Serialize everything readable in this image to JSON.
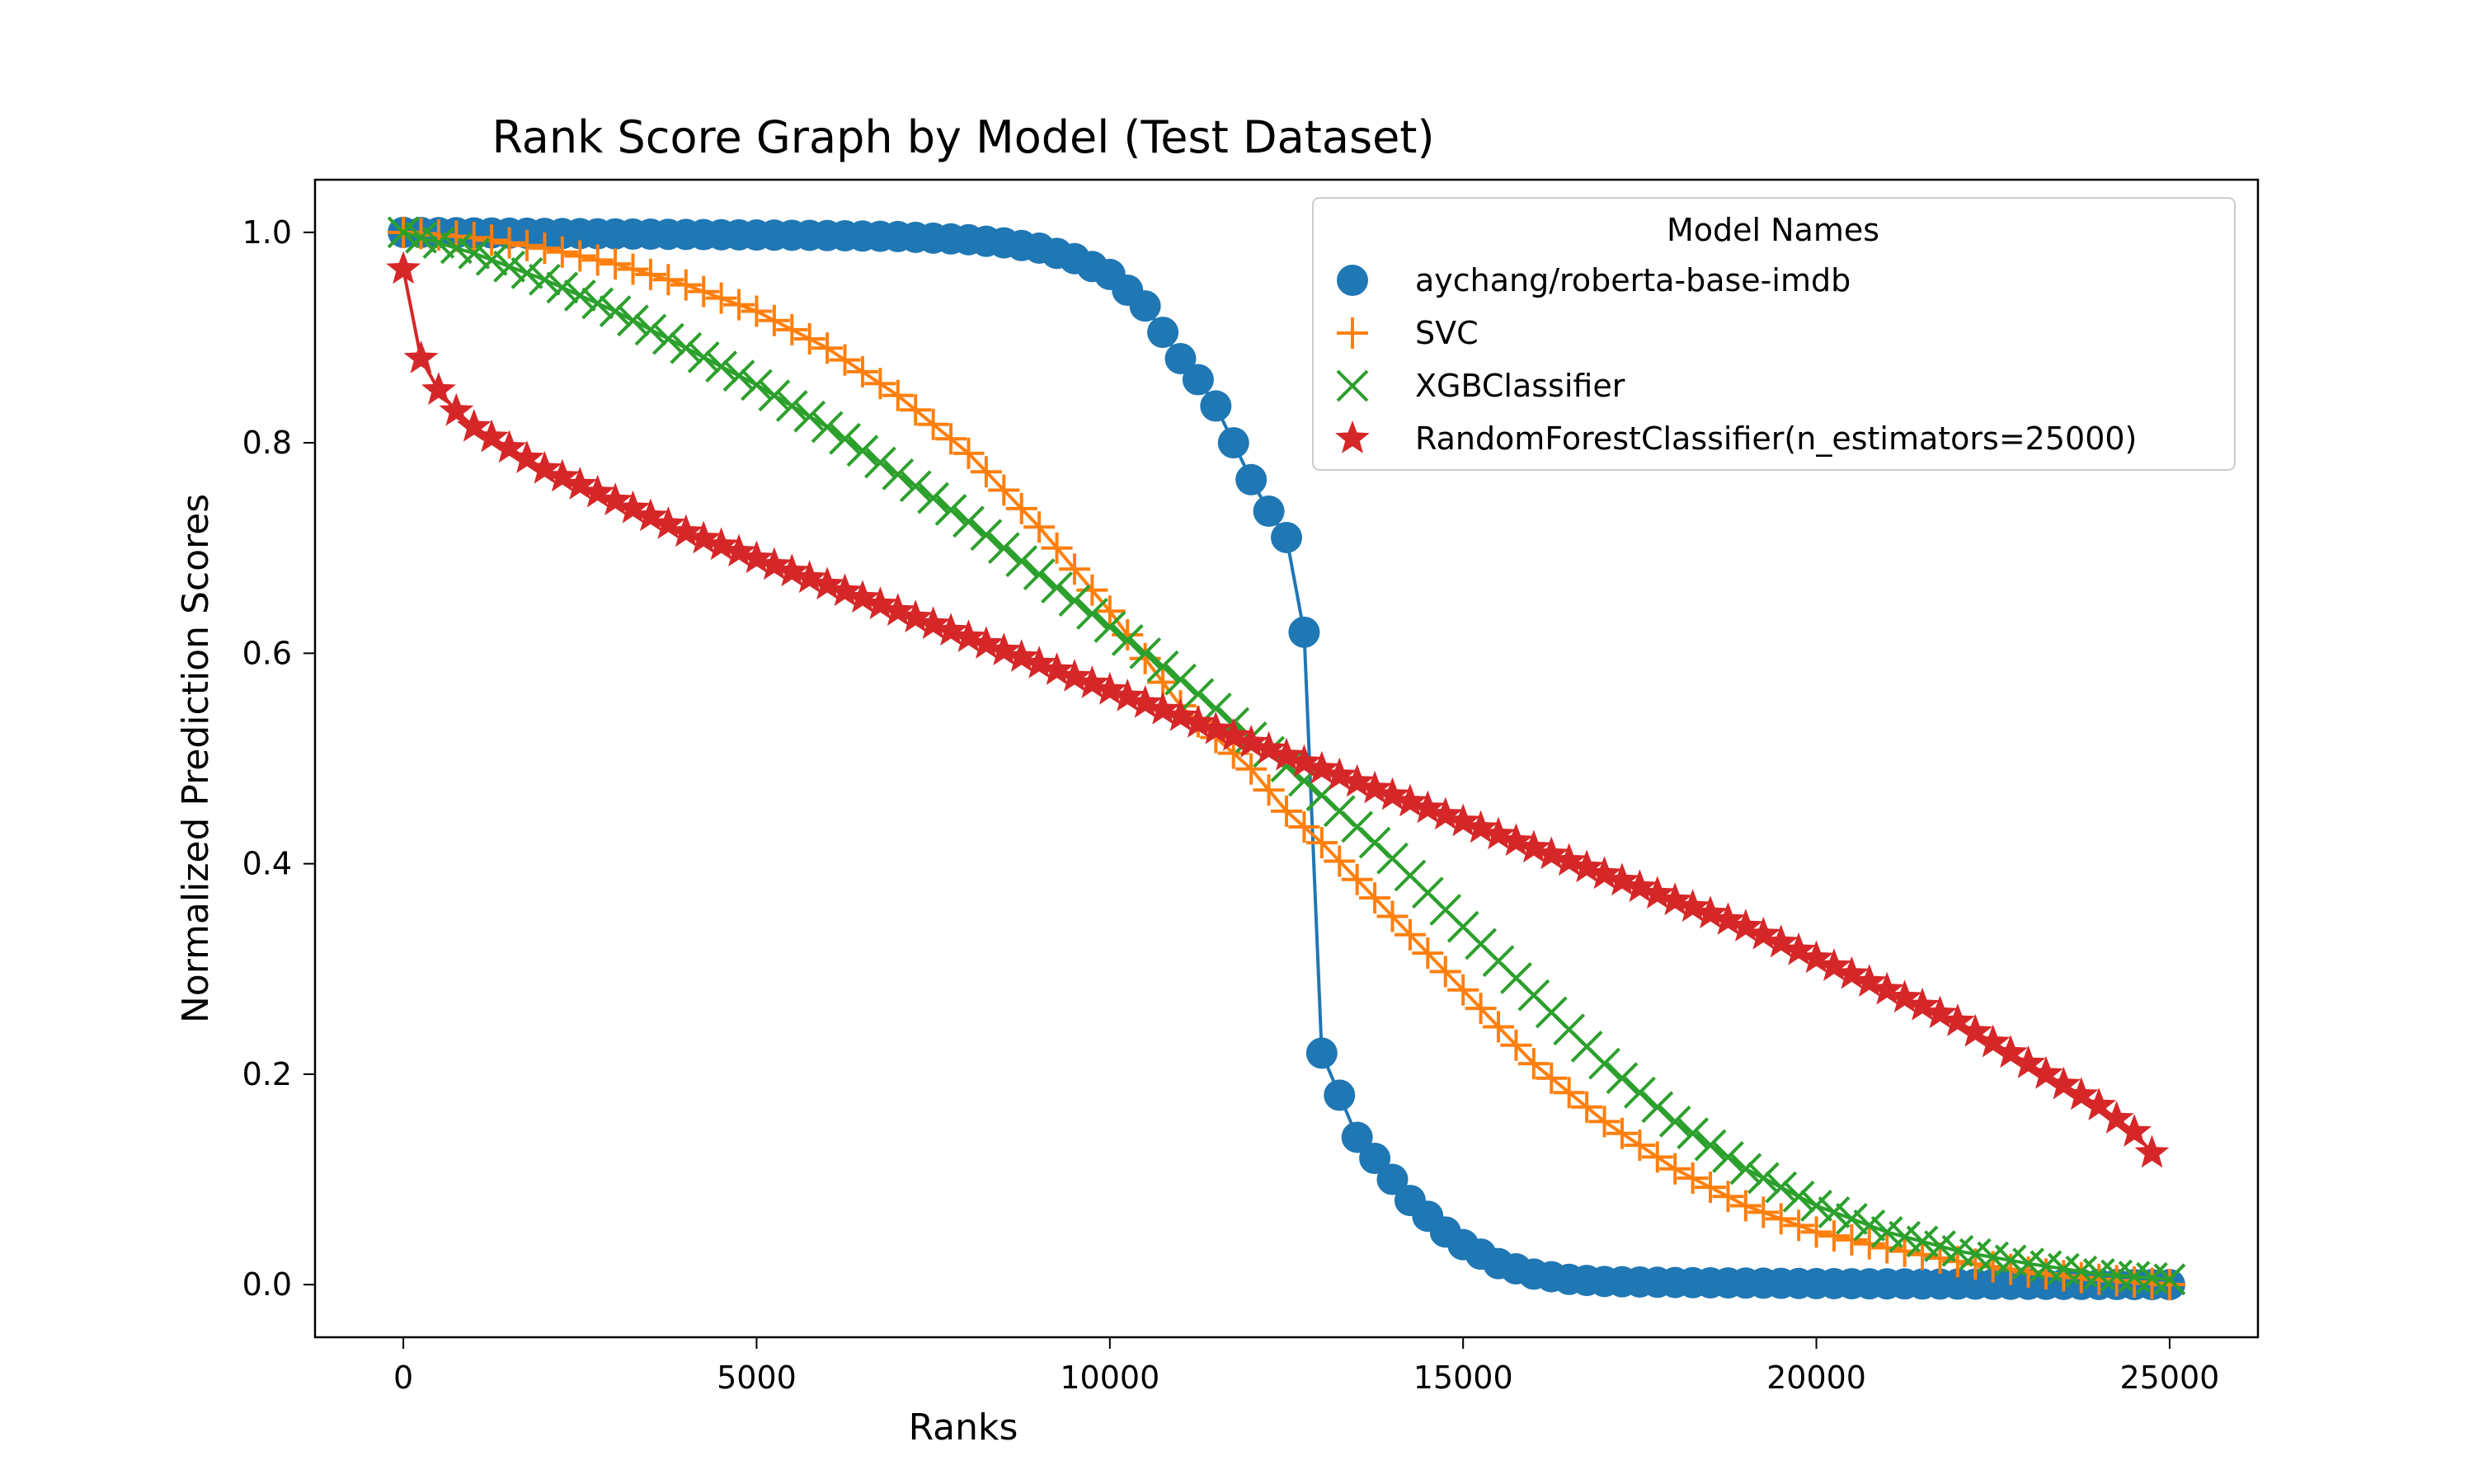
{
  "chart_data": {
    "type": "line",
    "title": "Rank Score Graph by Model (Test Dataset)",
    "xlabel": "Ranks",
    "ylabel": "Normalized Prediction Scores",
    "xlim": [
      -1250,
      26250
    ],
    "ylim": [
      -0.05,
      1.05
    ],
    "xticks": [
      0,
      5000,
      10000,
      15000,
      20000,
      25000
    ],
    "yticks": [
      0.0,
      0.2,
      0.4,
      0.6,
      0.8,
      1.0
    ],
    "xtick_labels": [
      "0",
      "5000",
      "10000",
      "15000",
      "20000",
      "25000"
    ],
    "ytick_labels": [
      "0.0",
      "0.2",
      "0.4",
      "0.6",
      "0.8",
      "1.0"
    ],
    "grid": false,
    "legend": {
      "title": "Model Names",
      "position": "top-right"
    },
    "marker_spacing": 250,
    "series": [
      {
        "name": "aychang/roberta-base-imdb",
        "color": "#1f77b4",
        "marker": "circle",
        "x": [
          0,
          2000,
          4000,
          6000,
          7000,
          8000,
          8500,
          9000,
          9500,
          10000,
          10500,
          10750,
          11000,
          11250,
          11500,
          11750,
          12000,
          12250,
          12500,
          12750,
          12850,
          12950,
          13000,
          13100,
          13250,
          13500,
          13750,
          14000,
          14250,
          14500,
          14750,
          15000,
          15500,
          16000,
          16500,
          17000,
          18000,
          20000,
          22000,
          25000
        ],
        "y": [
          1.0,
          0.999,
          0.998,
          0.997,
          0.996,
          0.993,
          0.99,
          0.985,
          0.975,
          0.96,
          0.93,
          0.905,
          0.88,
          0.86,
          0.835,
          0.8,
          0.765,
          0.735,
          0.71,
          0.62,
          0.5,
          0.35,
          0.22,
          0.2,
          0.18,
          0.14,
          0.12,
          0.1,
          0.08,
          0.065,
          0.05,
          0.038,
          0.02,
          0.01,
          0.005,
          0.003,
          0.002,
          0.001,
          0.0005,
          0.0
        ]
      },
      {
        "name": "SVC",
        "color": "#ff7f0e",
        "marker": "plus",
        "x": [
          0,
          1000,
          2000,
          3000,
          4000,
          5000,
          6000,
          7000,
          8000,
          9000,
          10000,
          11000,
          12000,
          12500,
          13000,
          14000,
          15000,
          16000,
          17000,
          18000,
          19000,
          20000,
          21000,
          22000,
          23000,
          24000,
          25000
        ],
        "y": [
          1.0,
          0.995,
          0.985,
          0.97,
          0.95,
          0.925,
          0.89,
          0.845,
          0.79,
          0.72,
          0.64,
          0.55,
          0.49,
          0.45,
          0.42,
          0.35,
          0.28,
          0.21,
          0.155,
          0.11,
          0.075,
          0.05,
          0.035,
          0.022,
          0.012,
          0.005,
          0.0
        ]
      },
      {
        "name": "XGBClassifier",
        "color": "#2ca02c",
        "marker": "x",
        "x": [
          0,
          1000,
          2000,
          3000,
          4000,
          5000,
          6000,
          7000,
          8000,
          9000,
          10000,
          11000,
          12000,
          13000,
          14000,
          15000,
          16000,
          17000,
          18000,
          19000,
          20000,
          21000,
          22000,
          23000,
          24000,
          25000
        ],
        "y": [
          1.0,
          0.98,
          0.955,
          0.925,
          0.89,
          0.855,
          0.815,
          0.77,
          0.725,
          0.675,
          0.625,
          0.575,
          0.52,
          0.465,
          0.405,
          0.34,
          0.275,
          0.21,
          0.155,
          0.11,
          0.075,
          0.05,
          0.032,
          0.02,
          0.01,
          0.005
        ]
      },
      {
        "name": "RandomForestClassifier(n_estimators=25000)",
        "color": "#d62728",
        "marker": "star",
        "x": [
          0,
          250,
          500,
          750,
          1000,
          1500,
          2000,
          3000,
          4000,
          5000,
          6000,
          7000,
          8000,
          9000,
          10000,
          11000,
          12000,
          13000,
          14000,
          15000,
          16000,
          17000,
          18000,
          19000,
          20000,
          21000,
          22000,
          22500,
          23000,
          23500,
          24000,
          24500,
          24750
        ],
        "y": [
          0.965,
          0.88,
          0.85,
          0.83,
          0.815,
          0.795,
          0.775,
          0.745,
          0.715,
          0.69,
          0.665,
          0.64,
          0.615,
          0.59,
          0.565,
          0.54,
          0.515,
          0.49,
          0.465,
          0.44,
          0.415,
          0.39,
          0.365,
          0.34,
          0.31,
          0.28,
          0.25,
          0.23,
          0.21,
          0.19,
          0.17,
          0.145,
          0.125
        ]
      }
    ]
  }
}
